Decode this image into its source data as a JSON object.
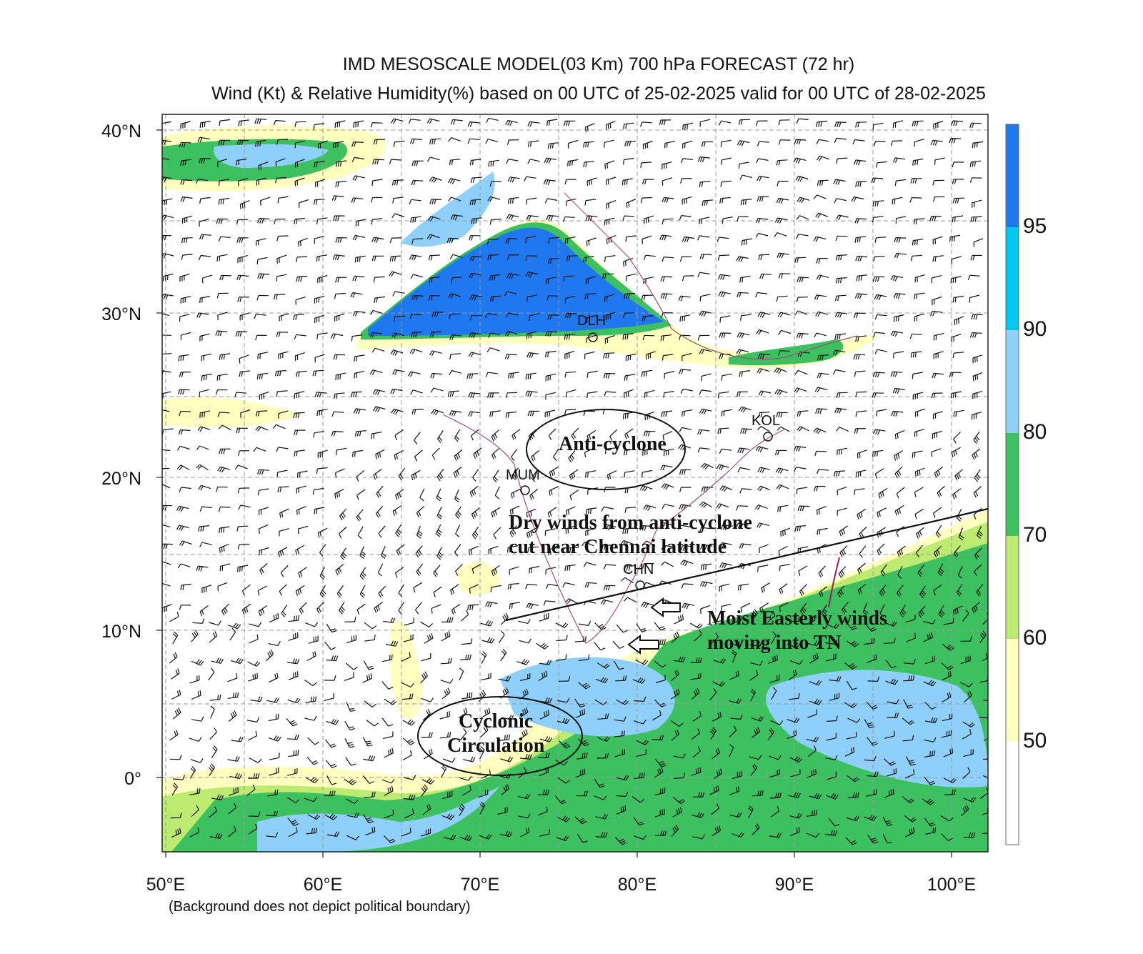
{
  "title": {
    "line1": "IMD MESOSCALE MODEL(03 Km) 700 hPa  FORECAST  (72 hr)",
    "line2": "Wind (Kt) & Relative Humidity(%)   based on 00 UTC of 25-02-2025 valid for 00 UTC of 28-02-2025"
  },
  "axes": {
    "latitude_ticks": [
      "40°N",
      "30°N",
      "20°N",
      "10°N",
      "0°"
    ],
    "longitude_ticks": [
      "50°E",
      "60°E",
      "70°E",
      "80°E",
      "90°E",
      "100°E"
    ]
  },
  "colorbar": {
    "labels": [
      "95",
      "90",
      "80",
      "70",
      "60",
      "50"
    ],
    "colors": [
      "#1f78f0",
      "#00c8f0",
      "#8fd0fa",
      "#3cc060",
      "#bdea70",
      "#ffffc0",
      "#ffffff"
    ]
  },
  "cities": [
    "DLH",
    "KOL",
    "MUM",
    "CHN"
  ],
  "annotations": {
    "anticyclone": "Anti-cyclone",
    "dry_line1": "Dry winds from anti-cyclone",
    "dry_line2": "cut near Chennai latitude",
    "moist_line1": "Moist Easterly winds",
    "moist_line2": "moving into TN",
    "cyclonic_line1": "Cyclonic",
    "cyclonic_line2": "Circulation"
  },
  "footnote": "(Background does not depict political boundary)"
}
